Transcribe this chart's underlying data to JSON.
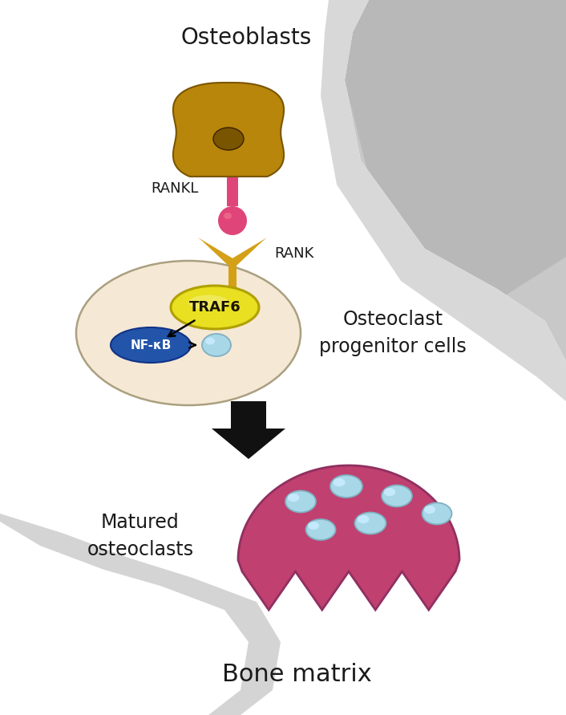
{
  "bg_color": "#c8c8c8",
  "scroll_white": "#ffffff",
  "scroll_gray_light": "#d8d8d8",
  "scroll_gray_mid": "#b8b8b8",
  "osteoblast_color": "#b8860b",
  "osteoblast_dark": "#7a5500",
  "osteoblast_mid": "#9a7008",
  "rankl_color": "#e0457a",
  "rankl_light": "#f07090",
  "rank_color": "#d4a017",
  "rank_dark": "#a07800",
  "cell_bg": "#f5e8d5",
  "cell_border": "#aaa080",
  "traf6_yellow": "#e8e020",
  "traf6_yellow2": "#f5f080",
  "traf6_border": "#b0a000",
  "nfkb_blue": "#2255aa",
  "nfkb_dark": "#103388",
  "nucleus_blue": "#a8d8e8",
  "nucleus_light": "#cceeff",
  "nucleus_border": "#80b0c0",
  "osteoclast_pink": "#c04070",
  "osteoclast_dark": "#903060",
  "arrow_black": "#111111",
  "text_dark": "#1a1a1a",
  "label_osteoblasts": "Osteoblasts",
  "label_rankl": "RANKL",
  "label_rank": "RANK",
  "label_traf6": "TRAF6",
  "label_nfkb": "NF-κB",
  "label_progenitor": "Osteoclast\nprogenitor cells",
  "label_matured": "Matured\nosteoclasts",
  "label_bone": "Bone matrix"
}
